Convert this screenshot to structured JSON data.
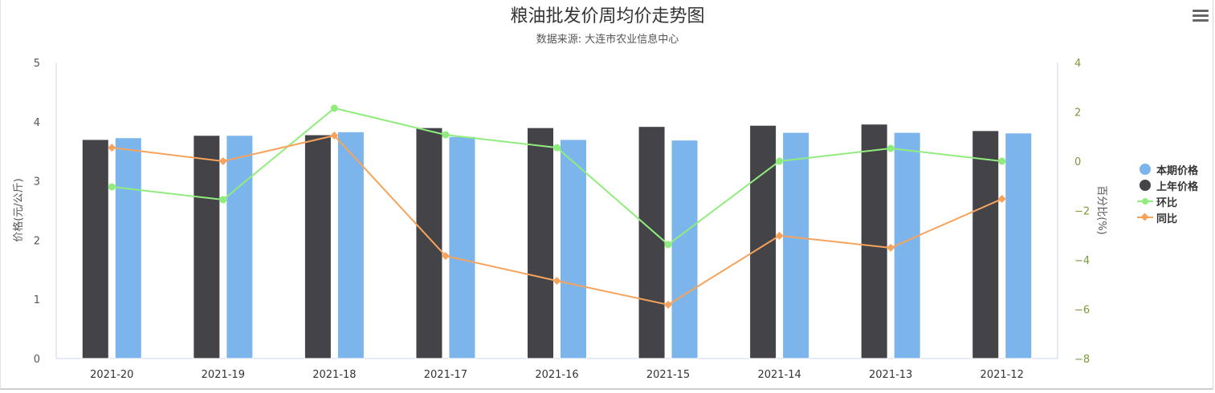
{
  "header": {
    "title": "粮油批发价周均价走势图",
    "subtitle": "数据来源: 大连市农业信息中心"
  },
  "toolbar": {
    "menu_icon": "hamburger-menu-icon"
  },
  "axes": {
    "left": {
      "label": "价格(元/公斤)",
      "ticks": [
        "0",
        "1",
        "2",
        "3",
        "4",
        "5"
      ]
    },
    "right": {
      "label": "百分比(%)",
      "ticks": [
        "-8",
        "-6",
        "-4",
        "-2",
        "0",
        "2",
        "4"
      ]
    }
  },
  "legend": [
    {
      "label": "本期价格",
      "color": "#7cb5ec",
      "symbol": "circle"
    },
    {
      "label": "上年价格",
      "color": "#434348",
      "symbol": "circle"
    },
    {
      "label": "环比",
      "color": "#90ed7d",
      "symbol": "line-circle"
    },
    {
      "label": "同比",
      "color": "#f7a35c",
      "symbol": "line-diamond"
    }
  ],
  "colors": {
    "current": "#7cb5ec",
    "last_year": "#434348",
    "mom": "#90ed7d",
    "yoy": "#f7a35c",
    "right_axis_text": "#7a9a3a",
    "axis_line": "#ccd6eb"
  },
  "chart_data": {
    "type": "bar",
    "title": "粮油批发价周均价走势图",
    "subtitle": "数据来源: 大连市农业信息中心",
    "categories": [
      "2021-20",
      "2021-19",
      "2021-18",
      "2021-17",
      "2021-16",
      "2021-15",
      "2021-14",
      "2021-13",
      "2021-12"
    ],
    "ylabel": "价格(元/公斤)",
    "ylim": [
      0,
      5
    ],
    "y2label": "百分比(%)",
    "y2lim": [
      -8,
      4
    ],
    "legend_position": "right",
    "grid": false,
    "series": [
      {
        "name": "上年价格",
        "type": "bar",
        "axis": "left",
        "color": "#434348",
        "values": [
          3.7,
          3.77,
          3.78,
          3.9,
          3.9,
          3.92,
          3.94,
          3.96,
          3.85
        ]
      },
      {
        "name": "本期价格",
        "type": "bar",
        "axis": "left",
        "color": "#7cb5ec",
        "values": [
          3.73,
          3.77,
          3.83,
          3.75,
          3.7,
          3.69,
          3.82,
          3.82,
          3.81
        ]
      },
      {
        "name": "环比",
        "type": "line",
        "axis": "right",
        "color": "#90ed7d",
        "marker": "circle",
        "values": [
          -1.04,
          -1.56,
          2.15,
          1.07,
          0.55,
          -3.38,
          0.0,
          0.52,
          0.0
        ]
      },
      {
        "name": "同比",
        "type": "line",
        "axis": "right",
        "color": "#f7a35c",
        "marker": "diamond",
        "values": [
          0.55,
          0.0,
          1.04,
          -3.84,
          -4.85,
          -5.82,
          -3.02,
          -3.51,
          -1.53
        ]
      }
    ]
  }
}
